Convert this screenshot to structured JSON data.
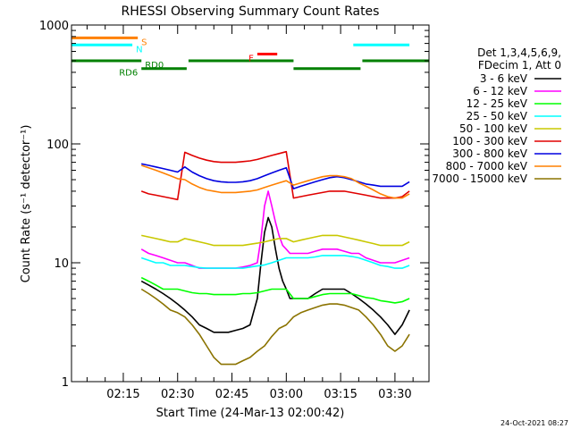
{
  "chart_data": {
    "type": "line",
    "title": "RHESSI Observing Summary Count Rates",
    "xlabel": "Start Time (24-Mar-13 02:00:42)",
    "ylabel": "Count Rate (s⁻¹ detector⁻¹)",
    "x_unit": "minutes after 02:00",
    "xlim": [
      0.7,
      99.4
    ],
    "ylim": [
      1,
      1000
    ],
    "yscale": "log",
    "x_ticks": [
      {
        "value": 15,
        "label": "02:15"
      },
      {
        "value": 30,
        "label": "02:30"
      },
      {
        "value": 45,
        "label": "02:45"
      },
      {
        "value": 60,
        "label": "03:00"
      },
      {
        "value": 75,
        "label": "03:15"
      },
      {
        "value": 90,
        "label": "03:30"
      }
    ],
    "y_ticks": [
      {
        "value": 1,
        "label": "1"
      },
      {
        "value": 10,
        "label": "10"
      },
      {
        "value": 100,
        "label": "100"
      },
      {
        "value": 1000,
        "label": "1000"
      }
    ],
    "legend": {
      "placement": "right",
      "header": [
        "Det 1,3,4,5,6,9,",
        "FDecim 1, Att 0"
      ]
    },
    "series": [
      {
        "name": "3 - 6 keV",
        "color": "#000000",
        "x": [
          20,
          22,
          24,
          26,
          28,
          30,
          32,
          34,
          36,
          38,
          40,
          42,
          44,
          46,
          48,
          50,
          52,
          53,
          54,
          55,
          56,
          57,
          58,
          59,
          60,
          61,
          62,
          64,
          66,
          68,
          70,
          72,
          74,
          76,
          78,
          80,
          82,
          84,
          86,
          88,
          90,
          92,
          94
        ],
        "y": [
          7,
          6.5,
          6,
          5.5,
          5,
          4.5,
          4,
          3.5,
          3,
          2.8,
          2.6,
          2.6,
          2.6,
          2.7,
          2.8,
          3,
          5,
          10,
          18,
          24,
          20,
          13,
          9,
          7,
          6,
          5,
          5,
          5,
          5,
          5.5,
          6,
          6,
          6,
          6,
          5.5,
          5,
          4.5,
          4,
          3.5,
          3,
          2.5,
          3,
          4
        ]
      },
      {
        "name": "6 - 12 keV",
        "color": "#ff00ff",
        "x": [
          20,
          22,
          24,
          26,
          28,
          30,
          32,
          34,
          36,
          38,
          40,
          42,
          44,
          46,
          48,
          50,
          52,
          53,
          54,
          55,
          56,
          57,
          58,
          59,
          60,
          61,
          62,
          64,
          66,
          68,
          70,
          72,
          74,
          76,
          78,
          80,
          82,
          84,
          86,
          88,
          90,
          92,
          94
        ],
        "y": [
          13,
          12,
          11.5,
          11,
          10.5,
          10,
          10,
          9.5,
          9,
          9,
          9,
          9,
          9,
          9,
          9.2,
          9.5,
          10,
          16,
          30,
          40,
          30,
          22,
          17,
          14,
          13,
          12,
          12,
          12,
          12,
          12.5,
          13,
          13,
          13,
          12.5,
          12,
          12,
          11,
          10.5,
          10,
          10,
          10,
          10.5,
          11
        ]
      },
      {
        "name": "12 - 25 keV",
        "color": "#00ff00",
        "x": [
          20,
          22,
          24,
          26,
          28,
          30,
          32,
          34,
          36,
          38,
          40,
          42,
          44,
          46,
          48,
          50,
          52,
          54,
          56,
          58,
          60,
          62,
          64,
          66,
          68,
          70,
          72,
          74,
          76,
          78,
          80,
          82,
          84,
          86,
          88,
          90,
          92,
          94
        ],
        "y": [
          7.5,
          7,
          6.5,
          6,
          6,
          6,
          5.8,
          5.6,
          5.5,
          5.5,
          5.4,
          5.4,
          5.4,
          5.4,
          5.5,
          5.5,
          5.6,
          5.8,
          6,
          6,
          6,
          5,
          5,
          5,
          5.2,
          5.4,
          5.5,
          5.5,
          5.5,
          5.5,
          5.3,
          5.1,
          5,
          4.8,
          4.7,
          4.6,
          4.7,
          5
        ]
      },
      {
        "name": "25 - 50 keV",
        "color": "#00ffff",
        "x": [
          20,
          22,
          24,
          26,
          28,
          30,
          32,
          34,
          36,
          38,
          40,
          42,
          44,
          46,
          48,
          50,
          52,
          54,
          56,
          58,
          60,
          62,
          64,
          66,
          68,
          70,
          72,
          74,
          76,
          78,
          80,
          82,
          84,
          86,
          88,
          90,
          92,
          94
        ],
        "y": [
          11,
          10.5,
          10,
          10,
          9.5,
          9.5,
          9.5,
          9.3,
          9.1,
          9,
          9,
          9,
          9,
          9,
          9,
          9.2,
          9.4,
          9.6,
          10,
          10.5,
          11,
          11,
          11,
          11,
          11.2,
          11.5,
          11.5,
          11.5,
          11.5,
          11.3,
          11,
          10.5,
          10,
          9.5,
          9.3,
          9,
          9,
          9.5
        ]
      },
      {
        "name": "50 - 100 keV",
        "color": "#c8c800",
        "x": [
          20,
          22,
          24,
          26,
          28,
          30,
          32,
          34,
          36,
          38,
          40,
          42,
          44,
          46,
          48,
          50,
          52,
          54,
          56,
          58,
          60,
          62,
          64,
          66,
          68,
          70,
          72,
          74,
          76,
          78,
          80,
          82,
          84,
          86,
          88,
          90,
          92,
          94
        ],
        "y": [
          17,
          16.5,
          16,
          15.5,
          15,
          15,
          16,
          15.5,
          15,
          14.5,
          14,
          14,
          14,
          14,
          14,
          14.3,
          14.6,
          15,
          15.5,
          16,
          16,
          15,
          15.5,
          16,
          16.5,
          17,
          17,
          17,
          16.5,
          16,
          15.5,
          15,
          14.5,
          14,
          14,
          14,
          14,
          15
        ]
      },
      {
        "name": "100 - 300 keV",
        "color": "#e00000",
        "x": [
          20,
          22,
          24,
          26,
          28,
          30,
          32,
          34,
          36,
          38,
          40,
          42,
          44,
          46,
          48,
          50,
          52,
          54,
          56,
          58,
          60,
          62,
          64,
          66,
          68,
          70,
          72,
          74,
          76,
          78,
          80,
          82,
          84,
          86,
          88,
          90,
          92,
          94
        ],
        "y": [
          40,
          38,
          37,
          36,
          35,
          34,
          85,
          80,
          76,
          73,
          71,
          70,
          70,
          70,
          71,
          72,
          74,
          77,
          80,
          83,
          86,
          35,
          36,
          37,
          38,
          39,
          40,
          40,
          40,
          39,
          38,
          37,
          36,
          35,
          35,
          35,
          36,
          40
        ]
      },
      {
        "name": "300 - 800 keV",
        "color": "#0000e0",
        "x": [
          20,
          22,
          24,
          26,
          28,
          30,
          32,
          34,
          36,
          38,
          40,
          42,
          44,
          46,
          48,
          50,
          52,
          54,
          56,
          58,
          60,
          62,
          64,
          66,
          68,
          70,
          72,
          74,
          76,
          78,
          80,
          82,
          84,
          86,
          88,
          90,
          92,
          94
        ],
        "y": [
          68,
          66,
          64,
          62,
          60,
          58,
          64,
          58,
          54,
          51,
          49,
          48,
          47.5,
          47.5,
          48,
          49,
          51,
          54,
          57,
          60,
          63,
          42,
          44,
          46,
          48,
          50,
          52,
          53,
          52,
          50,
          48,
          46,
          45,
          44,
          44,
          44,
          44,
          48
        ]
      },
      {
        "name": "800 - 7000 keV",
        "color": "#ff8000",
        "x": [
          20,
          22,
          24,
          26,
          28,
          30,
          32,
          34,
          36,
          38,
          40,
          42,
          44,
          46,
          48,
          50,
          52,
          54,
          56,
          58,
          60,
          62,
          64,
          66,
          68,
          70,
          72,
          74,
          76,
          78,
          80,
          82,
          84,
          86,
          88,
          90,
          92,
          94
        ],
        "y": [
          66,
          63,
          60,
          57,
          54,
          51,
          50,
          46,
          43,
          41,
          40,
          39,
          39,
          39,
          39.5,
          40,
          41,
          43,
          45,
          47,
          49,
          45,
          47,
          49,
          51,
          53,
          54,
          54,
          53,
          51,
          47,
          44,
          41,
          38,
          36,
          35,
          35,
          38
        ]
      },
      {
        "name": "7000 - 15000 keV",
        "color": "#8b7300",
        "x": [
          20,
          22,
          24,
          26,
          28,
          30,
          32,
          34,
          36,
          38,
          40,
          42,
          44,
          46,
          48,
          50,
          52,
          54,
          56,
          58,
          60,
          62,
          64,
          66,
          68,
          70,
          72,
          74,
          76,
          78,
          80,
          82,
          84,
          86,
          88,
          90,
          92,
          94
        ],
        "y": [
          6,
          5.5,
          5,
          4.5,
          4,
          3.8,
          3.5,
          3,
          2.5,
          2,
          1.6,
          1.4,
          1.4,
          1.4,
          1.5,
          1.6,
          1.8,
          2,
          2.4,
          2.8,
          3,
          3.5,
          3.8,
          4,
          4.2,
          4.4,
          4.5,
          4.5,
          4.4,
          4.2,
          4,
          3.5,
          3,
          2.5,
          2,
          1.8,
          2,
          2.5
        ]
      }
    ],
    "state_flags": [
      {
        "label": "S",
        "color": "#ff8000",
        "level": 780,
        "segments": [
          [
            0.7,
            19
          ]
        ]
      },
      {
        "label": "N",
        "color": "#00ffff",
        "level": 680,
        "segments": [
          [
            0.7,
            17.5
          ],
          [
            78.5,
            94
          ]
        ]
      },
      {
        "label": "RD0",
        "color": "#008000",
        "level": 500,
        "segments": [
          [
            0.7,
            20
          ],
          [
            33,
            62
          ],
          [
            81,
            99.4
          ]
        ]
      },
      {
        "label": "RD6",
        "color": "#008000",
        "level": 430,
        "segments": [
          [
            20,
            32.5
          ],
          [
            62,
            80.5
          ]
        ]
      },
      {
        "label": "F",
        "color": "#ff0000",
        "level": 570,
        "segments": [
          [
            52,
            57.5
          ]
        ]
      }
    ]
  },
  "footer_date": "24-Oct-2021 08:27"
}
